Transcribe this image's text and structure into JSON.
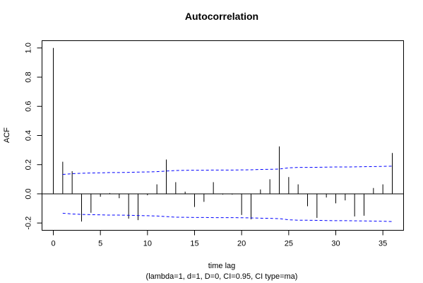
{
  "chart_data": {
    "type": "bar",
    "title": "Autocorrelation",
    "xlabel": "time lag",
    "subtitle": "(lambda=1, d=1, D=0, CI=0.95, CI type=ma)",
    "ylabel": "ACF",
    "xlim": [
      -1.2,
      37.2
    ],
    "ylim": [
      -0.25,
      1.05
    ],
    "x_ticks": [
      0,
      5,
      10,
      15,
      20,
      25,
      30,
      35
    ],
    "y_ticks": [
      -0.2,
      0.0,
      0.2,
      0.4,
      0.6,
      0.8,
      1.0
    ],
    "y_tick_labels": [
      "-0.2",
      "0.0",
      "0.2",
      "0.4",
      "0.6",
      "0.8",
      "1.0"
    ],
    "lags": [
      0,
      1,
      2,
      3,
      4,
      5,
      6,
      7,
      8,
      9,
      10,
      11,
      12,
      13,
      14,
      15,
      16,
      17,
      18,
      19,
      20,
      21,
      22,
      23,
      24,
      25,
      26,
      27,
      28,
      29,
      30,
      31,
      32,
      33,
      34,
      35,
      36
    ],
    "acf": [
      1.0,
      0.22,
      0.155,
      -0.19,
      -0.13,
      -0.02,
      0.005,
      -0.03,
      -0.17,
      -0.18,
      -0.01,
      0.065,
      0.235,
      0.08,
      0.015,
      -0.09,
      -0.055,
      0.08,
      -0.005,
      -0.005,
      -0.145,
      -0.175,
      0.03,
      0.1,
      0.325,
      0.115,
      0.065,
      -0.085,
      -0.165,
      -0.025,
      -0.065,
      -0.045,
      -0.155,
      -0.15,
      0.04,
      0.065,
      0.28
    ],
    "ci_upper": [
      null,
      0.133,
      0.138,
      0.141,
      0.143,
      0.144,
      0.146,
      0.146,
      0.147,
      0.149,
      0.15,
      0.152,
      0.156,
      0.16,
      0.161,
      0.162,
      0.162,
      0.163,
      0.163,
      0.163,
      0.164,
      0.165,
      0.167,
      0.168,
      0.17,
      0.178,
      0.181,
      0.181,
      0.182,
      0.183,
      0.184,
      0.184,
      0.185,
      0.186,
      0.187,
      0.188,
      0.19
    ],
    "ci_lower": [
      null,
      -0.133,
      -0.138,
      -0.141,
      -0.143,
      -0.144,
      -0.146,
      -0.146,
      -0.147,
      -0.149,
      -0.15,
      -0.152,
      -0.156,
      -0.16,
      -0.161,
      -0.162,
      -0.162,
      -0.163,
      -0.163,
      -0.163,
      -0.164,
      -0.165,
      -0.167,
      -0.168,
      -0.17,
      -0.178,
      -0.181,
      -0.181,
      -0.182,
      -0.183,
      -0.184,
      -0.184,
      -0.185,
      -0.186,
      -0.187,
      -0.188,
      -0.19
    ],
    "ci_color": "#0000ff",
    "bar_color": "#000000",
    "grid": false,
    "legend": "none"
  }
}
